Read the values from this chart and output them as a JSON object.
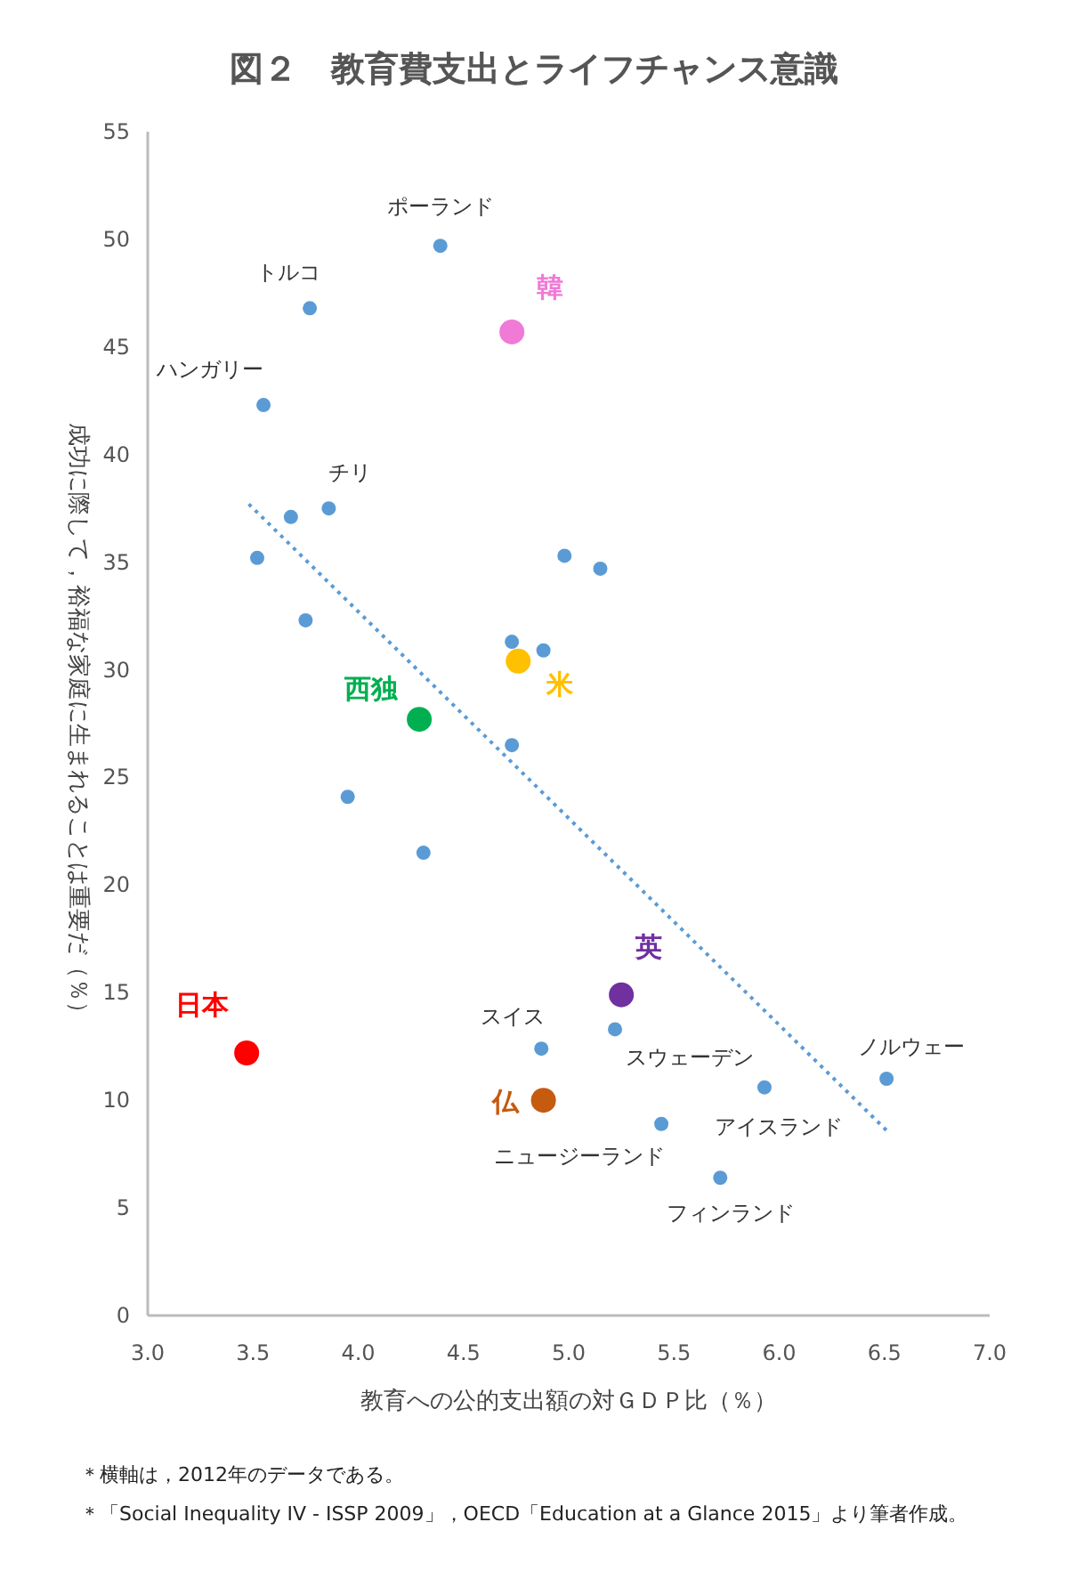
{
  "chart_data": {
    "type": "scatter",
    "title": "図２　教育費支出とライフチャンス意識",
    "xlabel": "教育への公的支出額の対ＧＤＰ比（％）",
    "ylabel": "成功に際して，裕福な家庭に生まれることは重要だ（％）",
    "xlim": [
      3,
      7
    ],
    "ylim": [
      0,
      55
    ],
    "xticks": [
      {
        "value": 3,
        "label": "3.0"
      },
      {
        "value": 3.5,
        "label": "3.5"
      },
      {
        "value": 4,
        "label": "4.0"
      },
      {
        "value": 4.5,
        "label": "4.5"
      },
      {
        "value": 5,
        "label": "5.0"
      },
      {
        "value": 5.5,
        "label": "5.5"
      },
      {
        "value": 6,
        "label": "6.0"
      },
      {
        "value": 6.5,
        "label": "6.5"
      },
      {
        "value": 7,
        "label": "7.0"
      }
    ],
    "yticks": [
      0,
      5,
      10,
      15,
      20,
      25,
      30,
      35,
      40,
      45,
      50,
      55
    ],
    "grid": false,
    "marker": "circle",
    "series": [
      {
        "color": "#5b9bd5",
        "x": [
          4.39,
          3.77,
          3.55,
          3.86,
          3.68,
          3.52,
          4.98,
          5.15,
          3.75,
          4.73,
          4.88,
          4.73,
          3.95,
          4.31,
          4.87,
          5.22,
          5.93,
          6.51,
          5.44,
          5.72
        ],
        "values": [
          49.7,
          46.8,
          42.3,
          37.5,
          37.1,
          35.2,
          35.3,
          34.7,
          32.3,
          31.3,
          30.9,
          26.5,
          24.1,
          21.5,
          12.4,
          13.3,
          10.6,
          11.0,
          8.9,
          6.4
        ]
      },
      {
        "name": "韓",
        "color": "#f07ad6",
        "x": [
          4.73
        ],
        "values": [
          45.7
        ]
      },
      {
        "name": "米",
        "color": "#ffc000",
        "x": [
          4.76
        ],
        "values": [
          30.4
        ]
      },
      {
        "name": "西独",
        "color": "#00b050",
        "x": [
          4.29
        ],
        "values": [
          27.7
        ]
      },
      {
        "name": "英",
        "color": "#7030a0",
        "x": [
          5.25
        ],
        "values": [
          14.9
        ]
      },
      {
        "name": "日本",
        "color": "#ff0000",
        "x": [
          3.47
        ],
        "values": [
          12.2
        ]
      },
      {
        "name": "仏",
        "color": "#c55a11",
        "x": [
          4.88
        ],
        "values": [
          10.0
        ]
      },
      {
        "type": "line",
        "line_style": "dotted",
        "marker": "none",
        "color": "#5b9bd5",
        "x": [
          3.48,
          6.51
        ],
        "values": [
          37.7,
          8.6
        ]
      }
    ],
    "annotations": [
      {
        "text": "ポーランド",
        "x": 4.39,
        "y": 49.7
      },
      {
        "text": "トルコ",
        "x": 3.77,
        "y": 46.8
      },
      {
        "text": "ハンガリー",
        "x": 3.55,
        "y": 42.3
      },
      {
        "text": "チリ",
        "x": 3.86,
        "y": 37.5
      },
      {
        "text": "スイス",
        "x": 4.87,
        "y": 12.4
      },
      {
        "text": "スウェーデン",
        "x": 5.22,
        "y": 13.3
      },
      {
        "text": "アイスランド",
        "x": 5.93,
        "y": 10.6
      },
      {
        "text": "ノルウェー",
        "x": 6.51,
        "y": 11.0
      },
      {
        "text": "ニュージーランド",
        "x": 5.44,
        "y": 8.9
      },
      {
        "text": "フィンランド",
        "x": 5.72,
        "y": 6.4
      },
      "＊横軸は，2012年のデータである。",
      "＊「Social Inequality IV - ISSP 2009」，OECD「Education at a Glance 2015」より筆者作成。"
    ]
  }
}
